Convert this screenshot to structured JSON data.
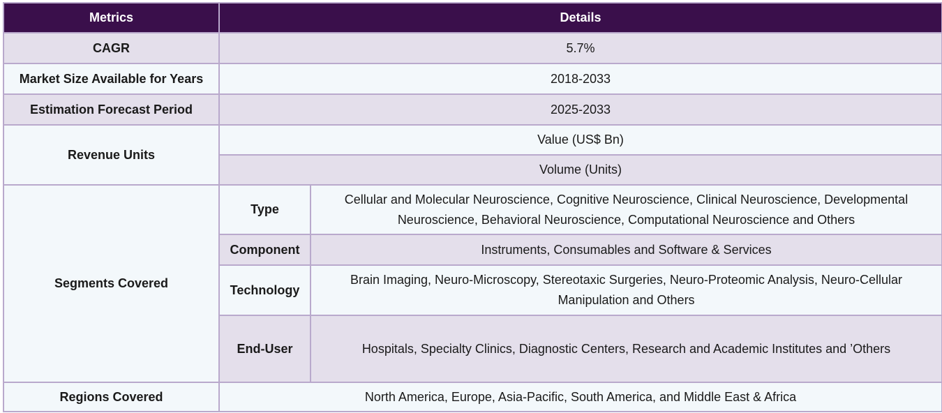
{
  "header": {
    "metrics": "Metrics",
    "details": "Details"
  },
  "rows": {
    "cagr": {
      "label": "CAGR",
      "value": "5.7%"
    },
    "market_size": {
      "label": "Market Size Available for Years",
      "value": "2018-2033"
    },
    "forecast": {
      "label": "Estimation Forecast Period",
      "value": "2025-2033"
    },
    "revenue": {
      "label": "Revenue Units",
      "values": [
        "Value (US$ Bn)",
        "Volume (Units)"
      ]
    },
    "segments": {
      "label": "Segments Covered",
      "items": [
        {
          "name": "Type",
          "value": "Cellular and Molecular Neuroscience, Cognitive Neuroscience, Clinical Neuroscience, Developmental Neuroscience, Behavioral Neuroscience, Computational Neuroscience and Others"
        },
        {
          "name": "Component",
          "value": "Instruments, Consumables and Software & Services"
        },
        {
          "name": "Technology",
          "value": "Brain Imaging, Neuro-Microscopy, Stereotaxic Surgeries, Neuro-Proteomic Analysis, Neuro-Cellular Manipulation and Others"
        },
        {
          "name": "End-User",
          "value": "Hospitals, Specialty Clinics, Diagnostic Centers, Research and Academic Institutes and ’Others"
        }
      ]
    },
    "regions": {
      "label": "Regions Covered",
      "value": "North America, Europe, Asia-Pacific, South America, and Middle East & Africa"
    }
  }
}
